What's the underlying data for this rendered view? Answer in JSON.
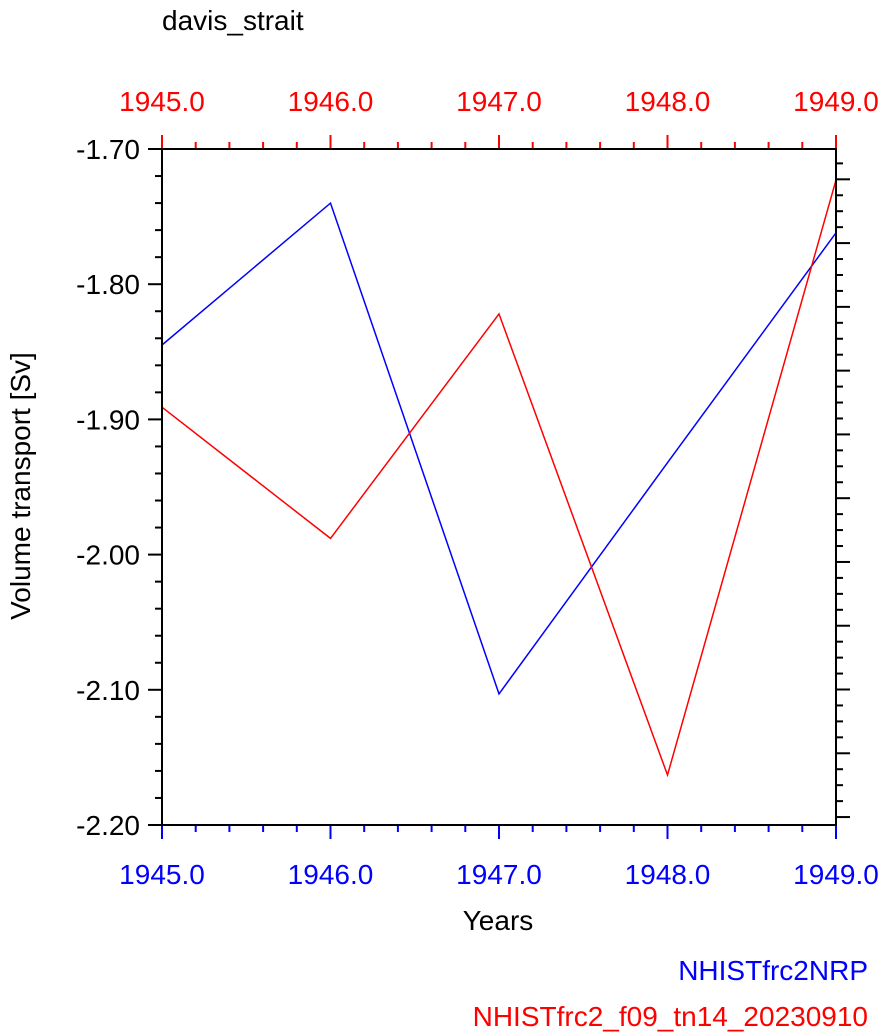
{
  "chart_data": {
    "type": "line",
    "title": "davis_strait",
    "xlabel": "Years",
    "ylabel": "Volume transport [Sv]",
    "xlim": [
      1945.0,
      1949.0
    ],
    "ylim": [
      -2.2,
      -1.7
    ],
    "x_ticks": [
      "1945.0",
      "1946.0",
      "1947.0",
      "1948.0",
      "1949.0"
    ],
    "x_tick_values": [
      1945.0,
      1946.0,
      1947.0,
      1948.0,
      1949.0
    ],
    "y_ticks": [
      "-1.70",
      "-1.80",
      "-1.90",
      "-2.00",
      "-2.10",
      "-2.20"
    ],
    "y_tick_values": [
      -1.7,
      -1.8,
      -1.9,
      -2.0,
      -2.1,
      -2.2
    ],
    "series": [
      {
        "name": "NHISTfrc2NRP",
        "color": "#0000ff",
        "x": [
          1945.0,
          1946.0,
          1947.0,
          1948.0,
          1949.0
        ],
        "values": [
          -1.845,
          -1.74,
          -2.103,
          -1.932,
          -1.762
        ]
      },
      {
        "name": "NHISTfrc2_f09_tn14_20230910",
        "color": "#ff0000",
        "x": [
          1945.0,
          1946.0,
          1947.0,
          1948.0,
          1949.0
        ],
        "values": [
          -1.891,
          -1.988,
          -1.822,
          -2.163,
          -1.723
        ]
      }
    ],
    "bottom_axis_color": "#0000ff",
    "top_axis_color": "#ff0000",
    "legend_position": "bottom-right"
  }
}
